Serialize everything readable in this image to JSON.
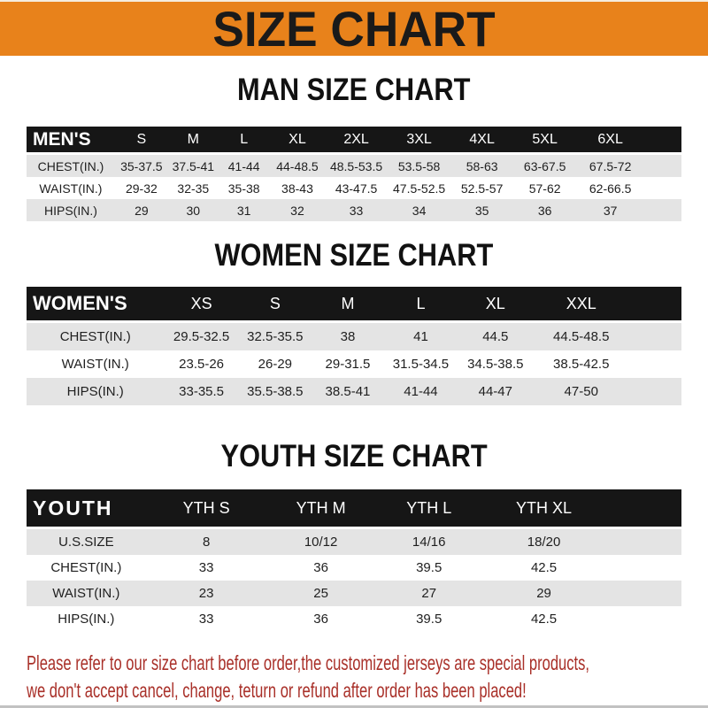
{
  "banner": {
    "title": "SIZE CHART"
  },
  "colors": {
    "banner_bg": "#E8821B",
    "table_header_bg": "#161616",
    "row_gray": "#E4E4E4",
    "note_red": "#A93029"
  },
  "charts": [
    {
      "id": "men",
      "heading": "MAN SIZE CHART",
      "header_label": "MEN'S",
      "columns": [
        "S",
        "M",
        "L",
        "XL",
        "2XL",
        "3XL",
        "4XL",
        "5XL",
        "6XL"
      ],
      "rows": [
        {
          "label": "CHEST(IN.)",
          "values": [
            "35-37.5",
            "37.5-41",
            "41-44",
            "44-48.5",
            "48.5-53.5",
            "53.5-58",
            "58-63",
            "63-67.5",
            "67.5-72"
          ]
        },
        {
          "label": "WAIST(IN.)",
          "values": [
            "29-32",
            "32-35",
            "35-38",
            "38-43",
            "43-47.5",
            "47.5-52.5",
            "52.5-57",
            "57-62",
            "62-66.5"
          ]
        },
        {
          "label": "HIPS(IN.)",
          "values": [
            "29",
            "30",
            "31",
            "32",
            "33",
            "34",
            "35",
            "36",
            "37"
          ]
        }
      ]
    },
    {
      "id": "women",
      "heading": "WOMEN SIZE CHART",
      "header_label": "WOMEN'S",
      "columns": [
        "XS",
        "S",
        "M",
        "L",
        "XL",
        "XXL"
      ],
      "rows": [
        {
          "label": "CHEST(IN.)",
          "values": [
            "29.5-32.5",
            "32.5-35.5",
            "38",
            "41",
            "44.5",
            "44.5-48.5"
          ]
        },
        {
          "label": "WAIST(IN.)",
          "values": [
            "23.5-26",
            "26-29",
            "29-31.5",
            "31.5-34.5",
            "34.5-38.5",
            "38.5-42.5"
          ]
        },
        {
          "label": "HIPS(IN.)",
          "values": [
            "33-35.5",
            "35.5-38.5",
            "38.5-41",
            "41-44",
            "44-47",
            "47-50"
          ]
        }
      ]
    },
    {
      "id": "youth",
      "heading": "YOUTH SIZE CHART",
      "header_label": "YOUTH",
      "columns": [
        "YTH S",
        "YTH M",
        "YTH L",
        "YTH XL"
      ],
      "rows": [
        {
          "label": "U.S.SIZE",
          "values": [
            "8",
            "10/12",
            "14/16",
            "18/20"
          ]
        },
        {
          "label": "CHEST(IN.)",
          "values": [
            "33",
            "36",
            "39.5",
            "42.5"
          ]
        },
        {
          "label": "WAIST(IN.)",
          "values": [
            "23",
            "25",
            "27",
            "29"
          ]
        },
        {
          "label": "HIPS(IN.)",
          "values": [
            "33",
            "36",
            "39.5",
            "42.5"
          ]
        }
      ]
    }
  ],
  "note": {
    "line1": "Please refer to our size chart before order,the customized jerseys are special products,",
    "line2": "we don't accept cancel, change, teturn or refund after order has been placed!"
  }
}
